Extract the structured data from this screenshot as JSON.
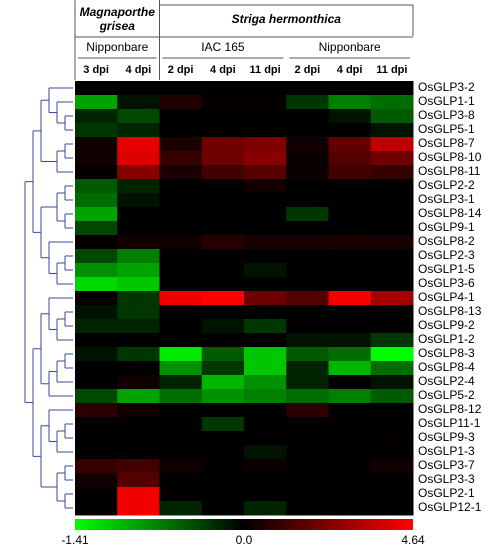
{
  "chart_data": {
    "type": "heatmap",
    "groups": [
      {
        "label": "Magnaporthe grisea",
        "subgroups": [
          {
            "label": "Nipponbare",
            "columns": [
              "3 dpi",
              "4 dpi"
            ]
          }
        ]
      },
      {
        "label": "Striga hermonthica",
        "subgroups": [
          {
            "label": "IAC 165",
            "columns": [
              "2 dpi",
              "4 dpi",
              "11 dpi"
            ]
          },
          {
            "label": "Nipponbare",
            "columns": [
              "2 dpi",
              "4 dpi",
              "11 dpi"
            ]
          }
        ]
      }
    ],
    "rows": [
      "OsGLP3-2",
      "OsGLP1-1",
      "OsGLP3-8",
      "OsGLP5-1",
      "OsGLP8-7",
      "OsGLP8-10",
      "OsGLP8-11",
      "OsGLP2-2",
      "OsGLP3-1",
      "OsGLP8-14",
      "OsGLP9-1",
      "OsGLP8-2",
      "OsGLP2-3",
      "OsGLP1-5",
      "OsGLP3-6",
      "OsGLP4-1",
      "OsGLP8-13",
      "OsGLP9-2",
      "OsGLP1-2",
      "OsGLP8-3",
      "OsGLP8-4",
      "OsGLP2-4",
      "OsGLP5-2",
      "OsGLP8-12",
      "OsGLP11-1",
      "OsGLP9-3",
      "OsGLP1-3",
      "OsGLP3-7",
      "OsGLP3-3",
      "OsGLP2-1",
      "OsGLP12-1"
    ],
    "values": [
      [
        0,
        0,
        0,
        0,
        0,
        0,
        0,
        0
      ],
      [
        -0.9,
        -0.1,
        0.6,
        0.1,
        0.1,
        -0.3,
        -0.7,
        -0.6
      ],
      [
        -0.2,
        -0.4,
        0,
        0,
        0,
        0,
        -0.1,
        -0.5
      ],
      [
        -0.3,
        -0.2,
        0,
        0,
        0,
        0,
        0,
        -0.1
      ],
      [
        0.3,
        4.2,
        0.5,
        2.0,
        2.3,
        0.3,
        1.8,
        3.5
      ],
      [
        0.3,
        4.0,
        1.0,
        2.0,
        2.5,
        0.2,
        1.5,
        2.0
      ],
      [
        0.1,
        2.5,
        0.5,
        1.2,
        1.6,
        0.2,
        1.2,
        1.0
      ],
      [
        -0.5,
        -0.2,
        0,
        0,
        0.3,
        0,
        0,
        0
      ],
      [
        -0.6,
        -0.1,
        0,
        0,
        0,
        0,
        0,
        0
      ],
      [
        -0.9,
        0,
        0,
        0,
        0,
        -0.3,
        0,
        0
      ],
      [
        -0.4,
        0,
        0,
        0,
        0,
        0,
        0,
        0
      ],
      [
        0.1,
        0.3,
        0.3,
        0.7,
        0.4,
        0.4,
        0.5,
        0.4
      ],
      [
        -0.4,
        -0.7,
        0,
        0,
        0,
        0,
        0,
        0
      ],
      [
        -0.8,
        -0.9,
        0,
        0,
        -0.1,
        0,
        0,
        0
      ],
      [
        -1.2,
        -1.1,
        0,
        0,
        0,
        0,
        0,
        0
      ],
      [
        0.1,
        -0.3,
        4.4,
        4.6,
        2.0,
        1.5,
        4.5,
        3.0
      ],
      [
        -0.1,
        -0.3,
        0,
        0,
        0,
        0,
        0,
        0
      ],
      [
        -0.2,
        -0.2,
        0,
        -0.1,
        -0.3,
        0,
        0,
        0
      ],
      [
        0,
        0,
        0,
        0,
        0,
        -0.1,
        -0.1,
        -0.3
      ],
      [
        -0.1,
        -0.3,
        -1.3,
        -0.5,
        -1.1,
        -0.5,
        -0.6,
        -1.4
      ],
      [
        0,
        0,
        -0.8,
        -0.3,
        -1.1,
        -0.2,
        -1.0,
        -0.6
      ],
      [
        0,
        0.3,
        -0.2,
        -1.0,
        -0.8,
        -0.2,
        0,
        -0.1
      ],
      [
        -0.4,
        -0.9,
        -0.6,
        -0.8,
        -0.7,
        -0.6,
        -0.7,
        -0.5
      ],
      [
        0.8,
        0.3,
        0,
        0,
        0,
        0.8,
        0,
        0
      ],
      [
        0,
        0,
        0,
        -0.3,
        0,
        0,
        0,
        0
      ],
      [
        0,
        0,
        0,
        0,
        0,
        0,
        0,
        0.1
      ],
      [
        0,
        0,
        0,
        0,
        -0.1,
        0,
        0,
        0
      ],
      [
        1.0,
        1.2,
        0.3,
        0,
        0.2,
        0,
        0.1,
        0.3
      ],
      [
        0.3,
        1.5,
        0,
        0,
        0,
        0,
        0,
        0
      ],
      [
        0,
        4.4,
        0.1,
        0,
        0,
        0,
        0,
        0
      ],
      [
        0,
        4.4,
        -0.2,
        0,
        -0.2,
        0,
        0,
        0
      ]
    ],
    "low_color": "#00ff00",
    "mid_color": "#000000",
    "high_color": "#ff0000",
    "colorbar_ticks": [
      -1.41,
      {
        "value": 0,
        "label": "0.0"
      },
      4.64
    ]
  }
}
